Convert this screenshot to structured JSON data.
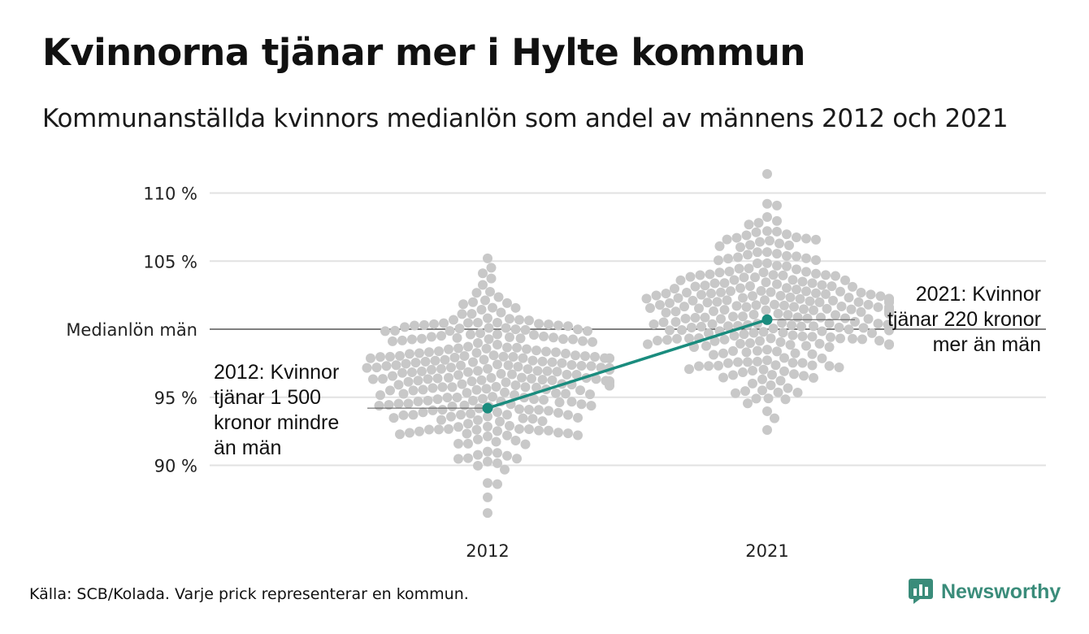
{
  "header": {
    "title": "Kvinnorna tjänar mer i Hylte kommun",
    "subtitle": "Kommunanställda kvinnors medianlön som andel av männens 2012 och 2021"
  },
  "footer": {
    "source": "Källa: SCB/Kolada. Varje prick representerar en kommun.",
    "brand": "Newsworthy"
  },
  "colors": {
    "dots": "#c8c8c8",
    "highlight": "#1a8c7e",
    "grid": "#e2e2e2",
    "reference_line": "#333333",
    "brand": "#3a8c7a"
  },
  "chart_data": {
    "type": "scatter",
    "title": "Kvinnorna tjänar mer i Hylte kommun",
    "subtitle": "Kommunanställda kvinnors medianlön som andel av männens 2012 och 2021",
    "categories": [
      "2012",
      "2021"
    ],
    "y_ticks": [
      {
        "value": 90,
        "label": "90 %"
      },
      {
        "value": 95,
        "label": "95 %"
      },
      {
        "value": 100,
        "label": "Medianlön män"
      },
      {
        "value": 105,
        "label": "105 %"
      },
      {
        "value": 110,
        "label": "110 %"
      }
    ],
    "ylim": [
      86,
      112
    ],
    "grid": true,
    "reference_line": {
      "value": 100,
      "label": "Medianlön män"
    },
    "swarm_distributions": [
      {
        "category": "2012",
        "count": 290,
        "mean": 96.6,
        "sd": 3.0,
        "min": 86.5,
        "max": 105.2
      },
      {
        "category": "2021",
        "count": 290,
        "mean": 101.2,
        "sd": 3.0,
        "min": 92.6,
        "max": 111.4
      }
    ],
    "highlight_series": {
      "name": "Hylte kommun",
      "points": [
        {
          "x": "2012",
          "y": 94.2
        },
        {
          "x": "2021",
          "y": 100.7
        }
      ]
    },
    "annotations": [
      {
        "category": "2012",
        "y": 94.2,
        "lines": [
          "2012: Kvinnor",
          "tjänar 1 500",
          "kronor mindre",
          "än män"
        ]
      },
      {
        "category": "2021",
        "y": 100.7,
        "lines": [
          "2021: Kvinnor",
          "tjänar 220 kronor",
          "mer än män"
        ]
      }
    ]
  }
}
